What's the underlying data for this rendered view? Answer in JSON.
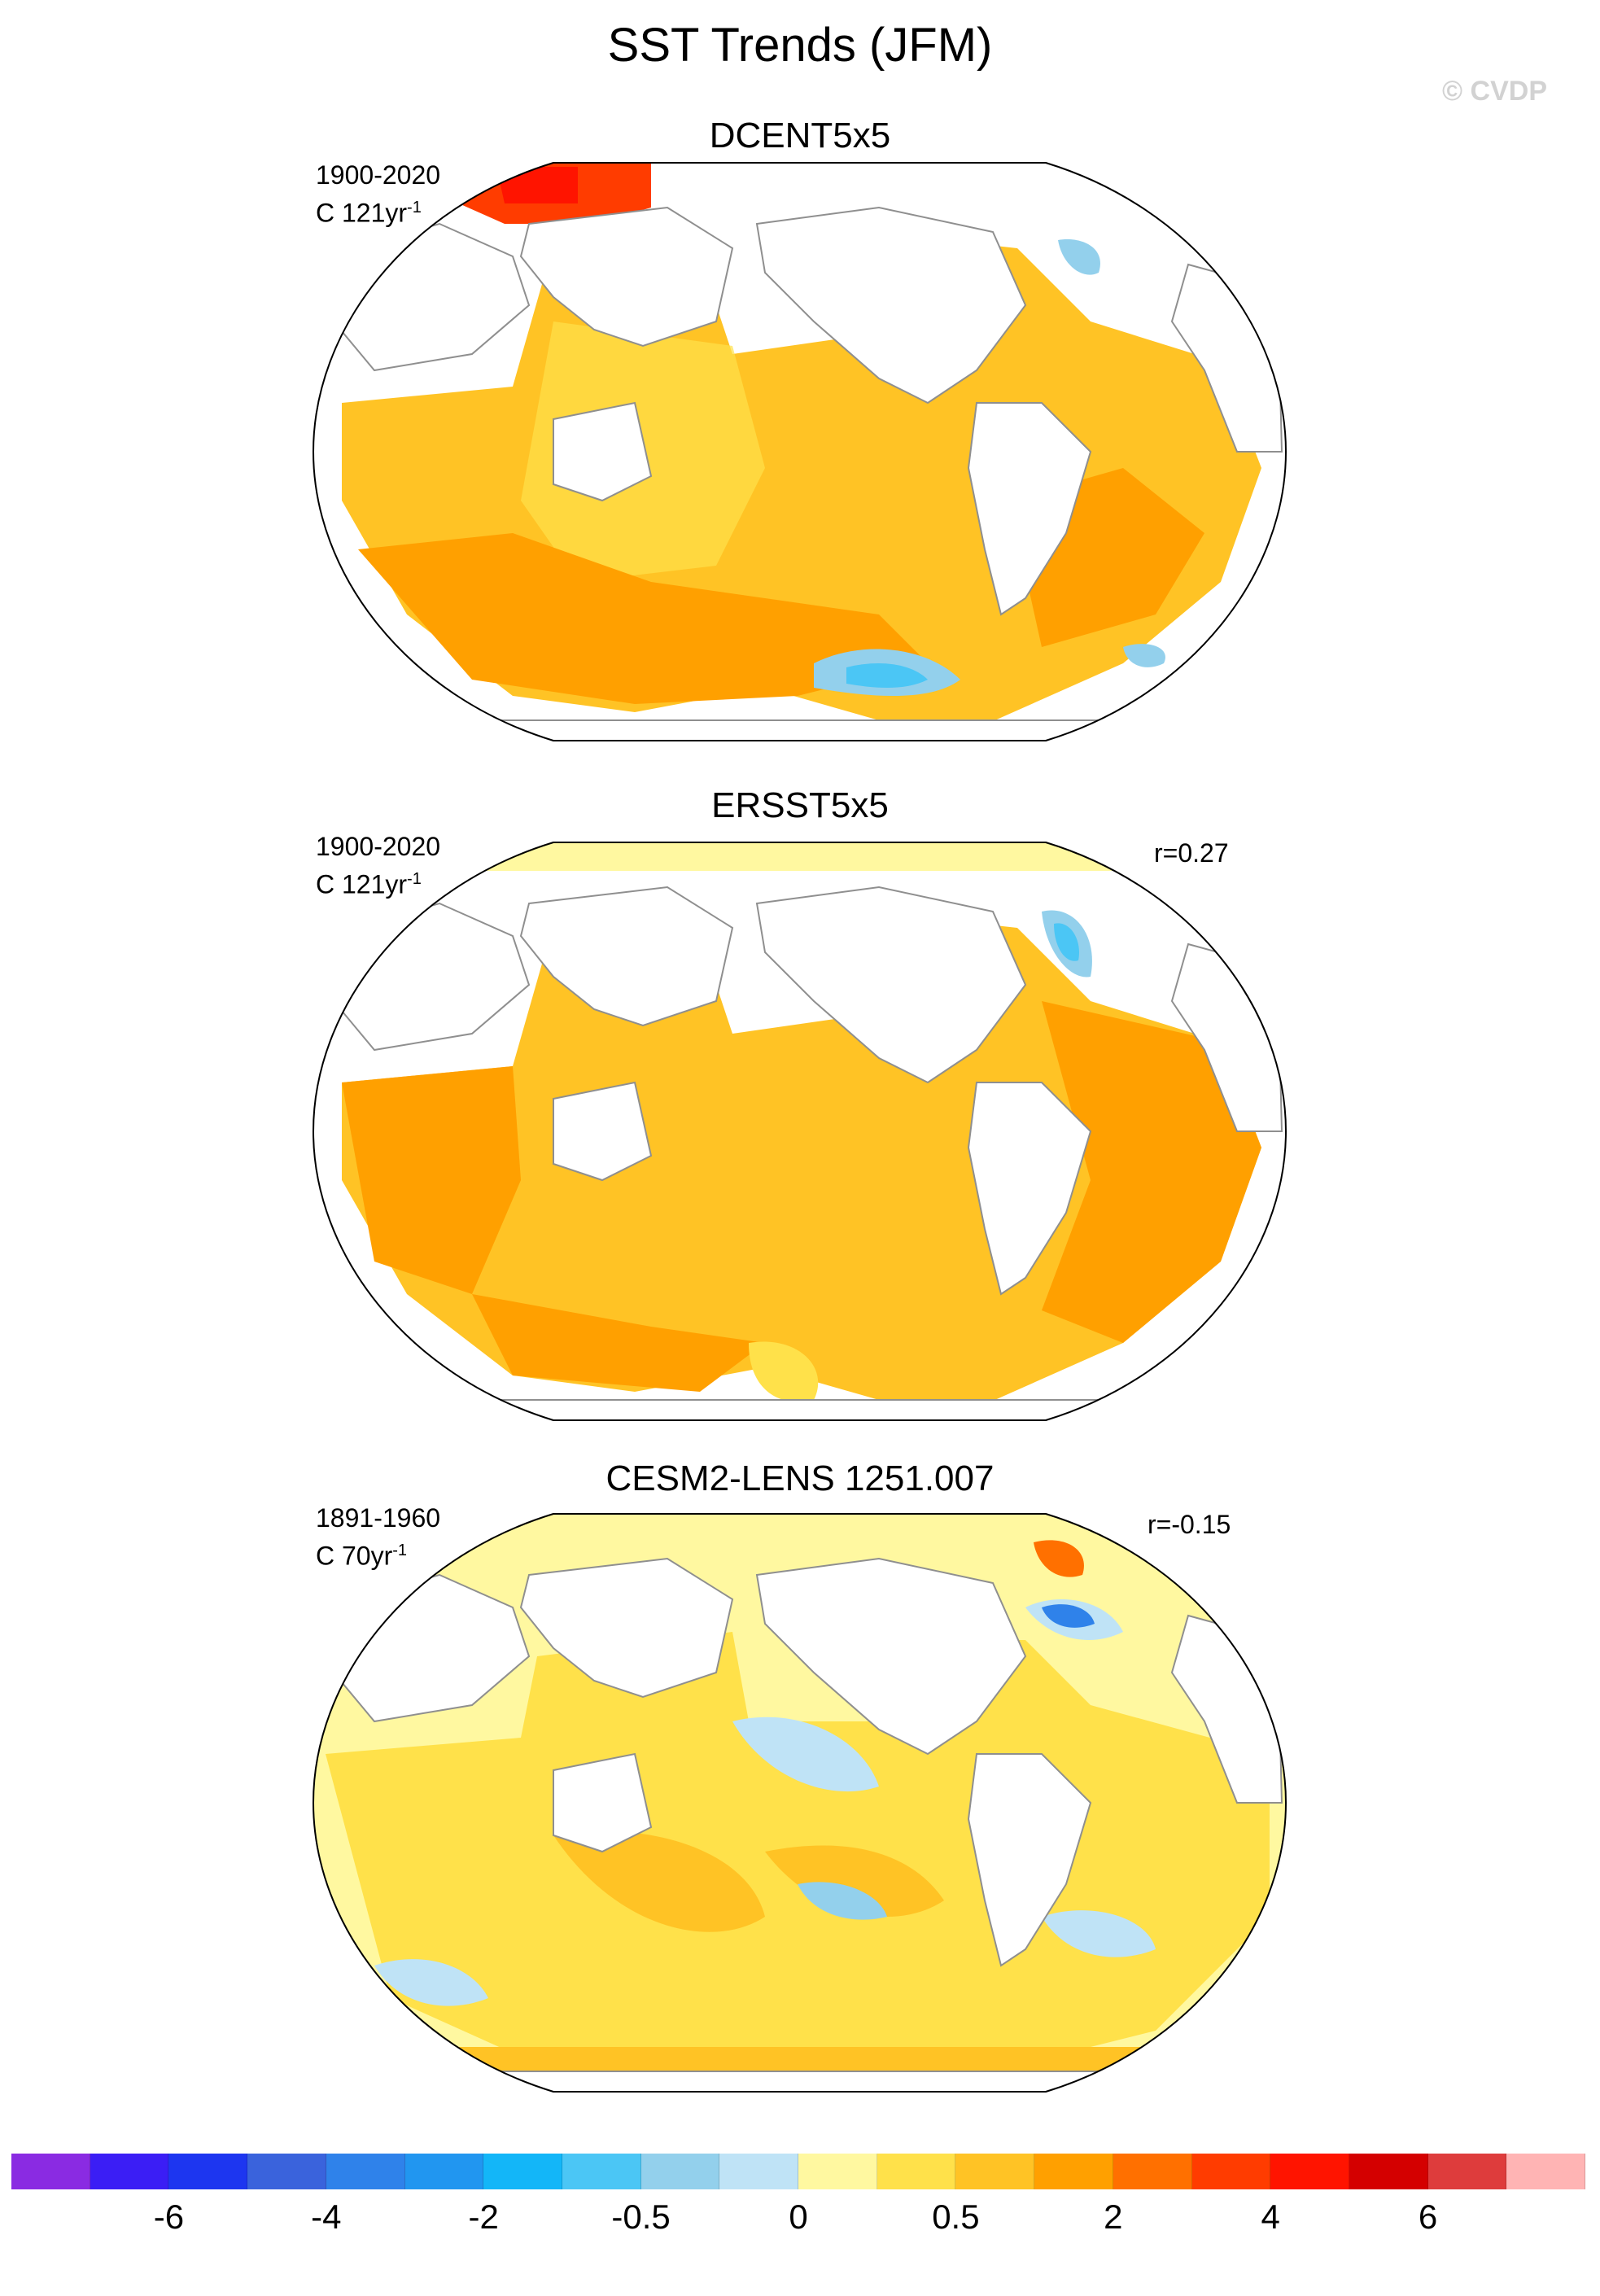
{
  "title": "SST Trends (JFM)",
  "copyright": "© CVDP",
  "panels": [
    {
      "title": "DCENT5x5",
      "period": "1900-2020",
      "units": "C 121yr",
      "units_exp": "-1",
      "corr": ""
    },
    {
      "title": "ERSST5x5",
      "period": "1900-2020",
      "units": "C 121yr",
      "units_exp": "-1",
      "corr": "r=0.27"
    },
    {
      "title": "CESM2-LENS 1251.007",
      "period": "1891-1960",
      "units": "C 70yr",
      "units_exp": "-1",
      "corr": "r=-0.15"
    }
  ],
  "colorbar": {
    "colors": [
      "#8a2be2",
      "#3b1ef5",
      "#1d36f0",
      "#3a63dc",
      "#2f82ea",
      "#2196f0",
      "#13b6f8",
      "#4bc6f5",
      "#93d0ec",
      "#bfe3f6",
      "#fff8a0",
      "#ffe14a",
      "#ffc325",
      "#ffa000",
      "#ff7000",
      "#ff3c00",
      "#ff1400",
      "#d40000",
      "#de3c3c",
      "#ffb4b4"
    ],
    "labels": [
      "-6",
      "-4",
      "-2",
      "-0.5",
      "0",
      "0.5",
      "2",
      "4",
      "6"
    ]
  }
}
